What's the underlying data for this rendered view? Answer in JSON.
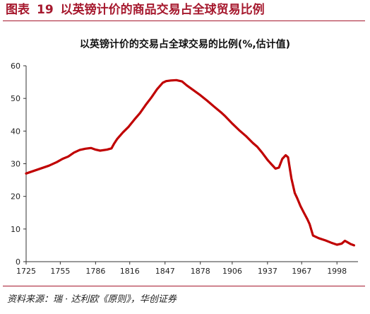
{
  "figure": {
    "prefix": "图表",
    "number": "19",
    "title": "以英镑计价的商品交易占全球贸易比例",
    "source": "资料来源：瑞 · 达利欧《原则》，华创证券"
  },
  "colors": {
    "accent": "#a6192e",
    "line": "#c00000"
  },
  "chart_data": {
    "type": "line",
    "title": "以英镑计价的交易占全球交易的比例(%,估计值)",
    "xlabel": "",
    "ylabel": "",
    "xlim": [
      1725,
      2014
    ],
    "ylim": [
      0,
      60
    ],
    "x_ticks": [
      1725,
      1755,
      1786,
      1816,
      1847,
      1878,
      1906,
      1937,
      1967,
      1998
    ],
    "y_ticks": [
      0,
      10,
      20,
      30,
      40,
      50,
      60
    ],
    "grid": false,
    "legend": "none",
    "series": [
      {
        "x": [
          1725,
          1735,
          1745,
          1752,
          1757,
          1762,
          1767,
          1772,
          1777,
          1782,
          1786,
          1790,
          1796,
          1800,
          1802,
          1805,
          1810,
          1815,
          1820,
          1825,
          1830,
          1835,
          1840,
          1845,
          1848,
          1852,
          1857,
          1862,
          1866,
          1872,
          1878,
          1884,
          1890,
          1896,
          1900,
          1906,
          1912,
          1918,
          1924,
          1928,
          1932,
          1937,
          1940,
          1944,
          1947,
          1950,
          1953,
          1955,
          1958,
          1961,
          1963,
          1966,
          1969,
          1972,
          1974,
          1977,
          1982,
          1988,
          1993,
          1998,
          2002,
          2005,
          2008,
          2010,
          2013
        ],
        "y": [
          27,
          28.2,
          29.4,
          30.5,
          31.5,
          32.2,
          33.4,
          34.2,
          34.6,
          34.8,
          34.3,
          34.0,
          34.3,
          34.7,
          36,
          37.6,
          39.6,
          41.3,
          43.5,
          45.5,
          48.0,
          50.3,
          52.8,
          54.8,
          55.3,
          55.5,
          55.6,
          55.2,
          54.0,
          52.5,
          51.0,
          49.3,
          47.5,
          45.8,
          44.5,
          42.3,
          40.3,
          38.5,
          36.4,
          35.2,
          33.5,
          31.2,
          30.0,
          28.5,
          28.8,
          31.5,
          32.6,
          32.0,
          25.5,
          21.0,
          19.5,
          17.0,
          15.0,
          13.0,
          11.5,
          8.0,
          7.2,
          6.5,
          5.8,
          5.2,
          5.5,
          6.4,
          5.8,
          5.4,
          5.0
        ]
      }
    ]
  }
}
